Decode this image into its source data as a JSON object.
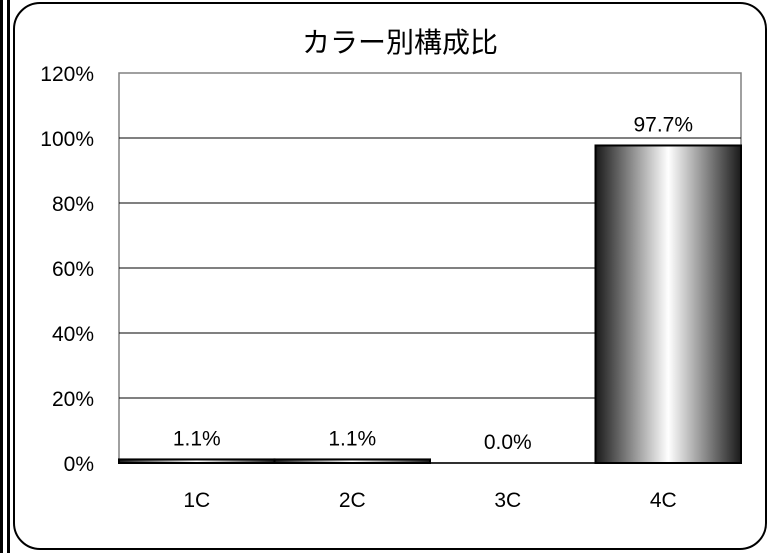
{
  "chart_data": {
    "type": "bar",
    "title": "カラー別構成比",
    "categories": [
      "1C",
      "2C",
      "3C",
      "4C"
    ],
    "values": [
      1.1,
      1.1,
      0.0,
      97.7
    ],
    "value_labels": [
      "1.1%",
      "1.1%",
      "0.0%",
      "97.7%"
    ],
    "y_ticks": [
      "0%",
      "20%",
      "40%",
      "60%",
      "80%",
      "100%",
      "120%"
    ],
    "ylim": [
      0,
      120
    ],
    "y_unit": "%",
    "grid": true,
    "legend": "none"
  },
  "colors": {
    "frame": "#000000",
    "plot_border": "#808080",
    "gridline": "#000000",
    "bar_edge": "#2a2a2a",
    "bar_center": "#ffffff"
  }
}
